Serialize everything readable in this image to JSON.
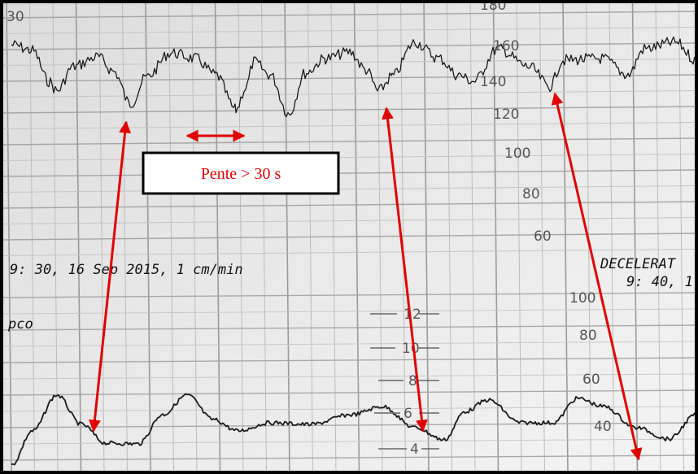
{
  "annotation": {
    "label": "Pente > 30 s"
  },
  "printout": {
    "header": "9: 30, 16 Sep 2015, 1 cm/min",
    "event": "DECELERAT",
    "event_time": "9: 40, 1",
    "channel": "pco",
    "corner_label": "30"
  },
  "scales": {
    "fhr": [
      "180",
      "160",
      "140",
      "120",
      "100",
      "80",
      "60"
    ],
    "toco": [
      "100",
      "80",
      "60",
      "40"
    ],
    "uc": [
      "12",
      "10",
      "8",
      "6",
      "4"
    ]
  }
}
